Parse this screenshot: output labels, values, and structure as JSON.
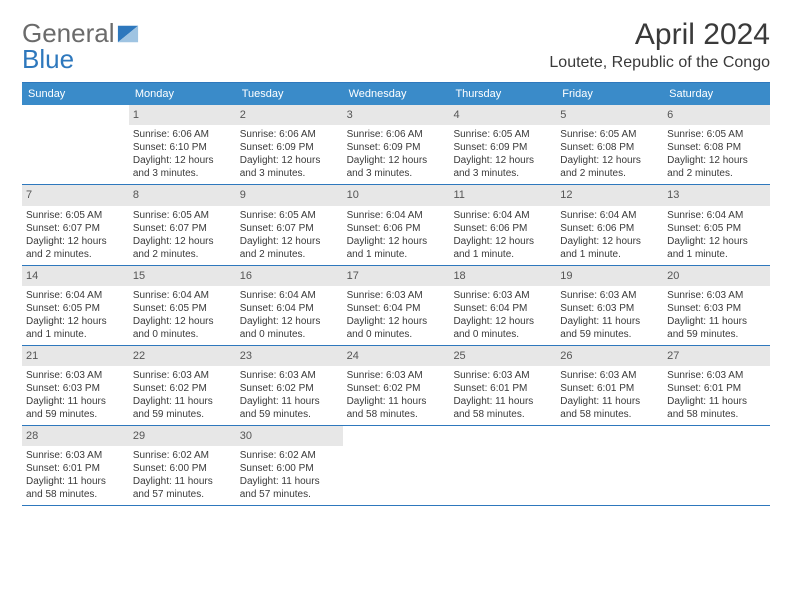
{
  "brand": {
    "part1": "General",
    "part2": "Blue"
  },
  "title": "April 2024",
  "location": "Loutete, Republic of the Congo",
  "colors": {
    "header_bg": "#3a8bc9",
    "rule": "#2e78bd",
    "daynum_bg": "#e7e7e7",
    "text": "#3a3a3a",
    "logo_grey": "#6b6b6b",
    "logo_blue": "#2e78bd"
  },
  "dow": [
    "Sunday",
    "Monday",
    "Tuesday",
    "Wednesday",
    "Thursday",
    "Friday",
    "Saturday"
  ],
  "weeks": [
    [
      {
        "n": "",
        "sr": "",
        "ss": "",
        "dl": ""
      },
      {
        "n": "1",
        "sr": "Sunrise: 6:06 AM",
        "ss": "Sunset: 6:10 PM",
        "dl": "Daylight: 12 hours and 3 minutes."
      },
      {
        "n": "2",
        "sr": "Sunrise: 6:06 AM",
        "ss": "Sunset: 6:09 PM",
        "dl": "Daylight: 12 hours and 3 minutes."
      },
      {
        "n": "3",
        "sr": "Sunrise: 6:06 AM",
        "ss": "Sunset: 6:09 PM",
        "dl": "Daylight: 12 hours and 3 minutes."
      },
      {
        "n": "4",
        "sr": "Sunrise: 6:05 AM",
        "ss": "Sunset: 6:09 PM",
        "dl": "Daylight: 12 hours and 3 minutes."
      },
      {
        "n": "5",
        "sr": "Sunrise: 6:05 AM",
        "ss": "Sunset: 6:08 PM",
        "dl": "Daylight: 12 hours and 2 minutes."
      },
      {
        "n": "6",
        "sr": "Sunrise: 6:05 AM",
        "ss": "Sunset: 6:08 PM",
        "dl": "Daylight: 12 hours and 2 minutes."
      }
    ],
    [
      {
        "n": "7",
        "sr": "Sunrise: 6:05 AM",
        "ss": "Sunset: 6:07 PM",
        "dl": "Daylight: 12 hours and 2 minutes."
      },
      {
        "n": "8",
        "sr": "Sunrise: 6:05 AM",
        "ss": "Sunset: 6:07 PM",
        "dl": "Daylight: 12 hours and 2 minutes."
      },
      {
        "n": "9",
        "sr": "Sunrise: 6:05 AM",
        "ss": "Sunset: 6:07 PM",
        "dl": "Daylight: 12 hours and 2 minutes."
      },
      {
        "n": "10",
        "sr": "Sunrise: 6:04 AM",
        "ss": "Sunset: 6:06 PM",
        "dl": "Daylight: 12 hours and 1 minute."
      },
      {
        "n": "11",
        "sr": "Sunrise: 6:04 AM",
        "ss": "Sunset: 6:06 PM",
        "dl": "Daylight: 12 hours and 1 minute."
      },
      {
        "n": "12",
        "sr": "Sunrise: 6:04 AM",
        "ss": "Sunset: 6:06 PM",
        "dl": "Daylight: 12 hours and 1 minute."
      },
      {
        "n": "13",
        "sr": "Sunrise: 6:04 AM",
        "ss": "Sunset: 6:05 PM",
        "dl": "Daylight: 12 hours and 1 minute."
      }
    ],
    [
      {
        "n": "14",
        "sr": "Sunrise: 6:04 AM",
        "ss": "Sunset: 6:05 PM",
        "dl": "Daylight: 12 hours and 1 minute."
      },
      {
        "n": "15",
        "sr": "Sunrise: 6:04 AM",
        "ss": "Sunset: 6:05 PM",
        "dl": "Daylight: 12 hours and 0 minutes."
      },
      {
        "n": "16",
        "sr": "Sunrise: 6:04 AM",
        "ss": "Sunset: 6:04 PM",
        "dl": "Daylight: 12 hours and 0 minutes."
      },
      {
        "n": "17",
        "sr": "Sunrise: 6:03 AM",
        "ss": "Sunset: 6:04 PM",
        "dl": "Daylight: 12 hours and 0 minutes."
      },
      {
        "n": "18",
        "sr": "Sunrise: 6:03 AM",
        "ss": "Sunset: 6:04 PM",
        "dl": "Daylight: 12 hours and 0 minutes."
      },
      {
        "n": "19",
        "sr": "Sunrise: 6:03 AM",
        "ss": "Sunset: 6:03 PM",
        "dl": "Daylight: 11 hours and 59 minutes."
      },
      {
        "n": "20",
        "sr": "Sunrise: 6:03 AM",
        "ss": "Sunset: 6:03 PM",
        "dl": "Daylight: 11 hours and 59 minutes."
      }
    ],
    [
      {
        "n": "21",
        "sr": "Sunrise: 6:03 AM",
        "ss": "Sunset: 6:03 PM",
        "dl": "Daylight: 11 hours and 59 minutes."
      },
      {
        "n": "22",
        "sr": "Sunrise: 6:03 AM",
        "ss": "Sunset: 6:02 PM",
        "dl": "Daylight: 11 hours and 59 minutes."
      },
      {
        "n": "23",
        "sr": "Sunrise: 6:03 AM",
        "ss": "Sunset: 6:02 PM",
        "dl": "Daylight: 11 hours and 59 minutes."
      },
      {
        "n": "24",
        "sr": "Sunrise: 6:03 AM",
        "ss": "Sunset: 6:02 PM",
        "dl": "Daylight: 11 hours and 58 minutes."
      },
      {
        "n": "25",
        "sr": "Sunrise: 6:03 AM",
        "ss": "Sunset: 6:01 PM",
        "dl": "Daylight: 11 hours and 58 minutes."
      },
      {
        "n": "26",
        "sr": "Sunrise: 6:03 AM",
        "ss": "Sunset: 6:01 PM",
        "dl": "Daylight: 11 hours and 58 minutes."
      },
      {
        "n": "27",
        "sr": "Sunrise: 6:03 AM",
        "ss": "Sunset: 6:01 PM",
        "dl": "Daylight: 11 hours and 58 minutes."
      }
    ],
    [
      {
        "n": "28",
        "sr": "Sunrise: 6:03 AM",
        "ss": "Sunset: 6:01 PM",
        "dl": "Daylight: 11 hours and 58 minutes."
      },
      {
        "n": "29",
        "sr": "Sunrise: 6:02 AM",
        "ss": "Sunset: 6:00 PM",
        "dl": "Daylight: 11 hours and 57 minutes."
      },
      {
        "n": "30",
        "sr": "Sunrise: 6:02 AM",
        "ss": "Sunset: 6:00 PM",
        "dl": "Daylight: 11 hours and 57 minutes."
      },
      {
        "n": "",
        "sr": "",
        "ss": "",
        "dl": ""
      },
      {
        "n": "",
        "sr": "",
        "ss": "",
        "dl": ""
      },
      {
        "n": "",
        "sr": "",
        "ss": "",
        "dl": ""
      },
      {
        "n": "",
        "sr": "",
        "ss": "",
        "dl": ""
      }
    ]
  ]
}
